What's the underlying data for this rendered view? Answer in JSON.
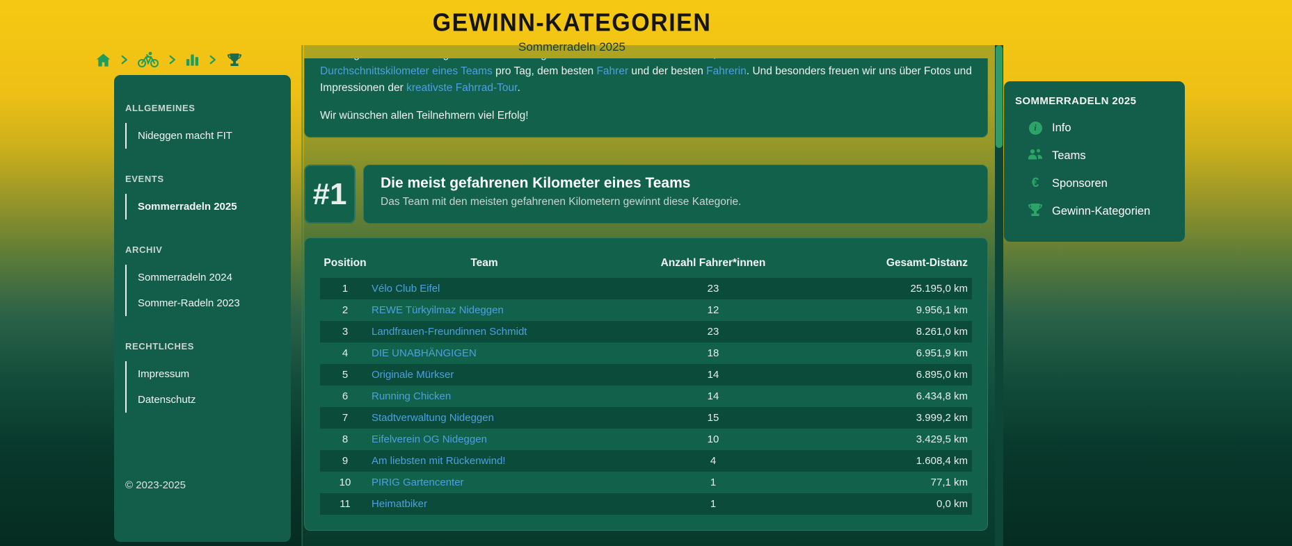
{
  "header": {
    "title": "GEWINN-KATEGORIEN",
    "subtitle": "Sommerradeln 2025"
  },
  "breadcrumb": {
    "separator": ">",
    "items": [
      {
        "icon": "home-icon"
      },
      {
        "icon": "cyclist-icon"
      },
      {
        "icon": "bar-chart-icon"
      },
      {
        "icon": "trophy-icon",
        "current": true
      }
    ]
  },
  "sidebar_left": {
    "sections": [
      {
        "title": "ALLGEMEINES",
        "items": [
          {
            "label": "Nideggen macht FIT",
            "active": false
          }
        ]
      },
      {
        "title": "EVENTS",
        "items": [
          {
            "label": "Sommerradeln 2025",
            "active": true
          }
        ]
      },
      {
        "title": "ARCHIV",
        "items": [
          {
            "label": "Sommerradeln 2024",
            "active": false
          },
          {
            "label": "Sommer-Radeln 2023",
            "active": false
          }
        ]
      },
      {
        "title": "RECHTLICHES",
        "items": [
          {
            "label": "Impressum",
            "active": false
          },
          {
            "label": "Datenschutz",
            "active": false
          }
        ]
      }
    ],
    "copyright": "© 2023-2025"
  },
  "intro": {
    "clipped_line_segments": [
      {
        "text": "Preise gibt es in den Kategorien: den meisten gefahrenen ",
        "link": false
      },
      {
        "text": "Kilometern eines Teams",
        "link": true
      },
      {
        "text": ", dem besten",
        "link": false
      }
    ],
    "line_segments": [
      {
        "text": "Durchschnittskilometer eines Teams",
        "link": true
      },
      {
        "text": " pro Tag, dem besten ",
        "link": false
      },
      {
        "text": "Fahrer",
        "link": true
      },
      {
        "text": " und der besten ",
        "link": false
      },
      {
        "text": "Fahrerin",
        "link": true
      },
      {
        "text": ". Und besonders freuen wir uns über Fotos und Impressionen der ",
        "link": false
      },
      {
        "text": "kreativste Fahrrad-Tour",
        "link": true
      },
      {
        "text": ".",
        "link": false
      }
    ],
    "wish": "Wir wünschen allen Teilnehmern viel Erfolg!"
  },
  "category": {
    "rank": "#1",
    "title": "Die meist gefahrenen Kilometer eines Teams",
    "description": "Das Team mit den meisten gefahrenen Kilometern gewinnt diese Kategorie."
  },
  "table": {
    "columns": [
      "Position",
      "Team",
      "Anzahl Fahrer*innen",
      "Gesamt-Distanz"
    ],
    "rows": [
      {
        "position": "1",
        "team": "Vélo Club Eifel",
        "riders": "23",
        "distance": "25.195,0 km"
      },
      {
        "position": "2",
        "team": "REWE Türkyilmaz Nideggen",
        "riders": "12",
        "distance": "9.956,1 km"
      },
      {
        "position": "3",
        "team": "Landfrauen-Freundinnen Schmidt",
        "riders": "23",
        "distance": "8.261,0 km"
      },
      {
        "position": "4",
        "team": "DIE UNABHÄNGIGEN",
        "riders": "18",
        "distance": "6.951,9 km"
      },
      {
        "position": "5",
        "team": "Originale Mürkser",
        "riders": "14",
        "distance": "6.895,0 km"
      },
      {
        "position": "6",
        "team": "Running Chicken",
        "riders": "14",
        "distance": "6.434,8 km"
      },
      {
        "position": "7",
        "team": "Stadtverwaltung Nideggen",
        "riders": "15",
        "distance": "3.999,2 km"
      },
      {
        "position": "8",
        "team": "Eifelverein OG Nideggen",
        "riders": "10",
        "distance": "3.429,5 km"
      },
      {
        "position": "9",
        "team": "Am liebsten mit Rückenwind!",
        "riders": "4",
        "distance": "1.608,4 km"
      },
      {
        "position": "10",
        "team": "PIRIG Gartencenter",
        "riders": "1",
        "distance": "77,1 km"
      },
      {
        "position": "11",
        "team": "Heimatbiker",
        "riders": "1",
        "distance": "0,0 km"
      }
    ]
  },
  "sidebar_right": {
    "title": "SOMMERRADELN 2025",
    "items": [
      {
        "icon": "info-icon",
        "label": "Info"
      },
      {
        "icon": "teams-icon",
        "label": "Teams"
      },
      {
        "icon": "euro-icon",
        "label": "Sponsoren"
      },
      {
        "icon": "trophy-icon",
        "label": "Gewinn-Kategorien"
      }
    ]
  },
  "colors": {
    "header_yellow": "#f2c314",
    "card_green": "#11614b",
    "sidebar_green": "#135e4a",
    "stripe_dark": "#0b4b3a",
    "link_blue": "#4da0e0",
    "icon_green": "#27a164",
    "trophy_current_green": "#1d6b4f",
    "scroll_thumb_green": "#2f9b66"
  }
}
